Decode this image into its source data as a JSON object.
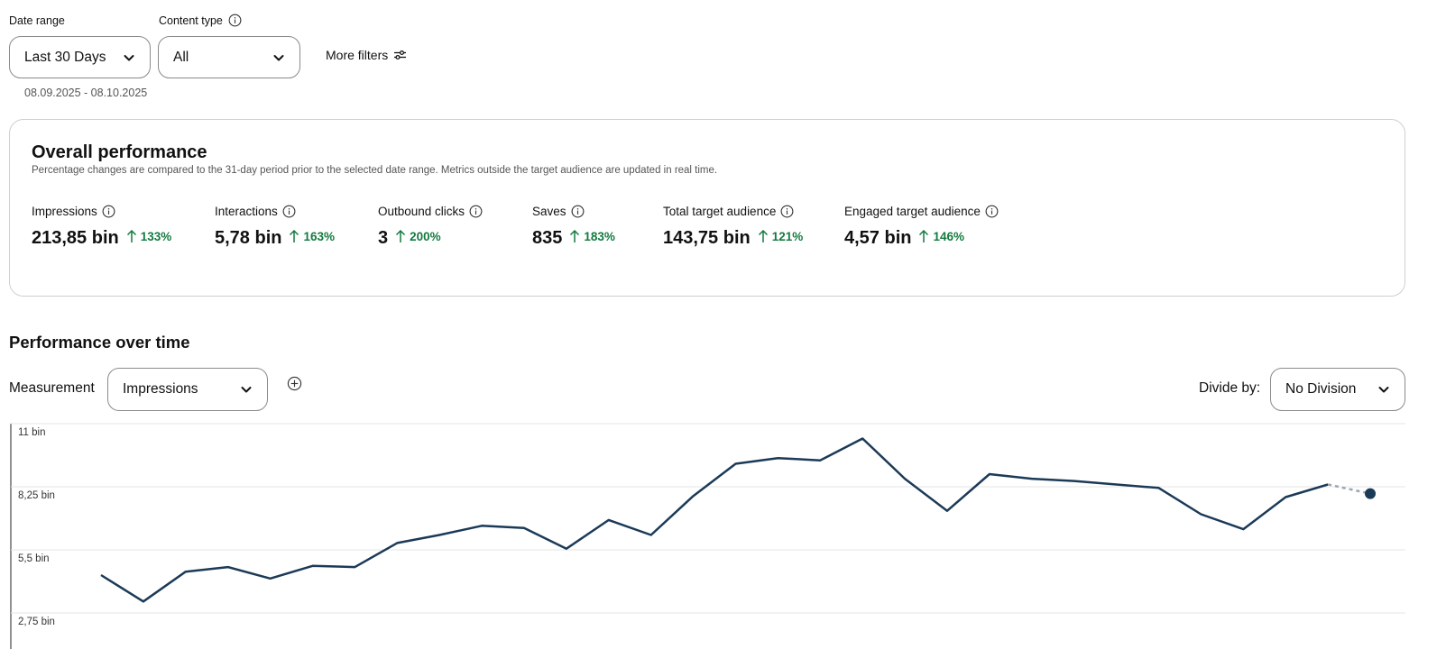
{
  "filters": {
    "date_range": {
      "label": "Date range",
      "value": "Last 30 Days",
      "sub": "08.09.2025 - 08.10.2025"
    },
    "content_type": {
      "label": "Content type",
      "value": "All"
    },
    "more_filters_label": "More filters"
  },
  "overall": {
    "title": "Overall performance",
    "description": "Percentage changes are compared to the 31-day period prior to the selected date range. Metrics outside the target audience are updated in real time.",
    "metrics": [
      {
        "label": "Impressions",
        "value": "213,85 bin",
        "change": "133%"
      },
      {
        "label": "Interactions",
        "value": "5,78 bin",
        "change": "163%"
      },
      {
        "label": "Outbound clicks",
        "value": "3",
        "change": "200%"
      },
      {
        "label": "Saves",
        "value": "835",
        "change": "183%"
      },
      {
        "label": "Total target audience",
        "value": "143,75 bin",
        "change": "121%"
      },
      {
        "label": "Engaged target audience",
        "value": "4,57 bin",
        "change": "146%"
      }
    ]
  },
  "over_time": {
    "title": "Performance over time",
    "measurement_label": "Measurement",
    "measurement_value": "Impressions",
    "divide_label": "Divide by:",
    "divide_value": "No Division"
  },
  "colors": {
    "line": "#1b3a57",
    "positive": "#137a3f",
    "grid": "#e6e6e6"
  },
  "chart_data": {
    "type": "line",
    "y_ticks": [
      "11 bin",
      "8,25 bin",
      "5,5 bin",
      "2,75 bin"
    ],
    "y_tick_values": [
      11000,
      8250,
      5500,
      2750
    ],
    "ylim": [
      2750,
      11000
    ],
    "series": [
      {
        "values": [
          4400,
          3250,
          4550,
          4750,
          4250,
          4800,
          4750,
          5800,
          6150,
          6550,
          6450,
          5550,
          6800,
          6150,
          7850,
          9250,
          9500,
          9400,
          10350,
          8600,
          7200,
          8800,
          8600,
          8500,
          8350,
          8200,
          7050,
          6400,
          7800,
          8350,
          7950
        ],
        "last_point_projected": true
      }
    ],
    "grid": true
  }
}
